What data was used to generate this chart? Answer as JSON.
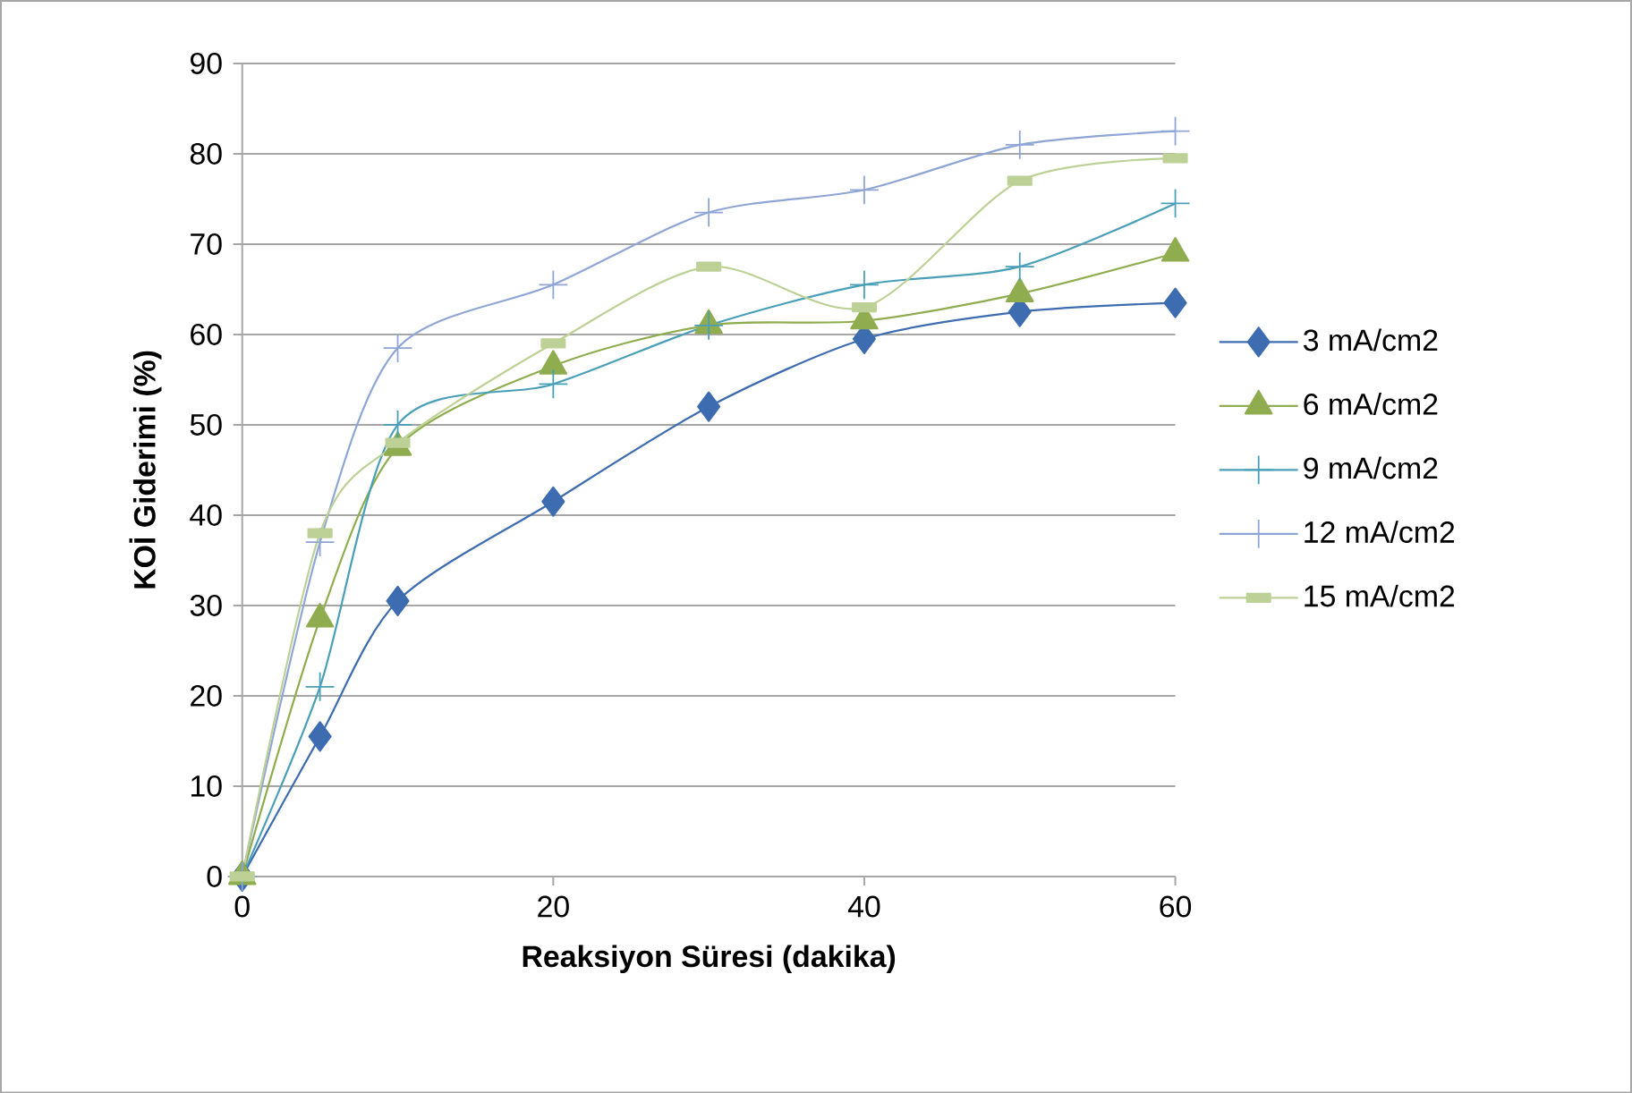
{
  "chart_data": {
    "type": "line",
    "xlabel": "Reaksiyon Süresi (dakika)",
    "ylabel": "KOİ Giderimi (%)",
    "x": [
      0,
      5,
      10,
      20,
      30,
      40,
      50,
      60
    ],
    "xlim": [
      0,
      60
    ],
    "ylim": [
      0,
      90
    ],
    "xticks": [
      0,
      20,
      40,
      60
    ],
    "yticks": [
      0,
      10,
      20,
      30,
      40,
      50,
      60,
      70,
      80,
      90
    ],
    "grid": "y",
    "legend": "right",
    "series": [
      {
        "name": "3 mA/cm2",
        "color": "#3e6cb0",
        "marker": "diamond",
        "values": [
          0,
          15.5,
          30.5,
          41.5,
          52,
          59.5,
          62.5,
          63.5
        ]
      },
      {
        "name": "6 mA/cm2",
        "color": "#8fac4f",
        "marker": "triangle",
        "values": [
          0,
          28.5,
          47.5,
          56.5,
          61,
          61.5,
          64.5,
          69
        ]
      },
      {
        "name": "9 mA/cm2",
        "color": "#4a9fb8",
        "marker": "cross",
        "values": [
          0,
          21,
          50,
          54.5,
          61,
          65.5,
          67.5,
          74.5
        ]
      },
      {
        "name": "12 mA/cm2",
        "color": "#8fa5d6",
        "marker": "cross",
        "values": [
          0,
          37,
          58.5,
          65.5,
          73.5,
          76,
          81,
          82.5
        ]
      },
      {
        "name": "15 mA/cm2",
        "color": "#bdd196",
        "marker": "square",
        "values": [
          0,
          38,
          48,
          59,
          67.5,
          63,
          77,
          79.5
        ]
      }
    ]
  }
}
